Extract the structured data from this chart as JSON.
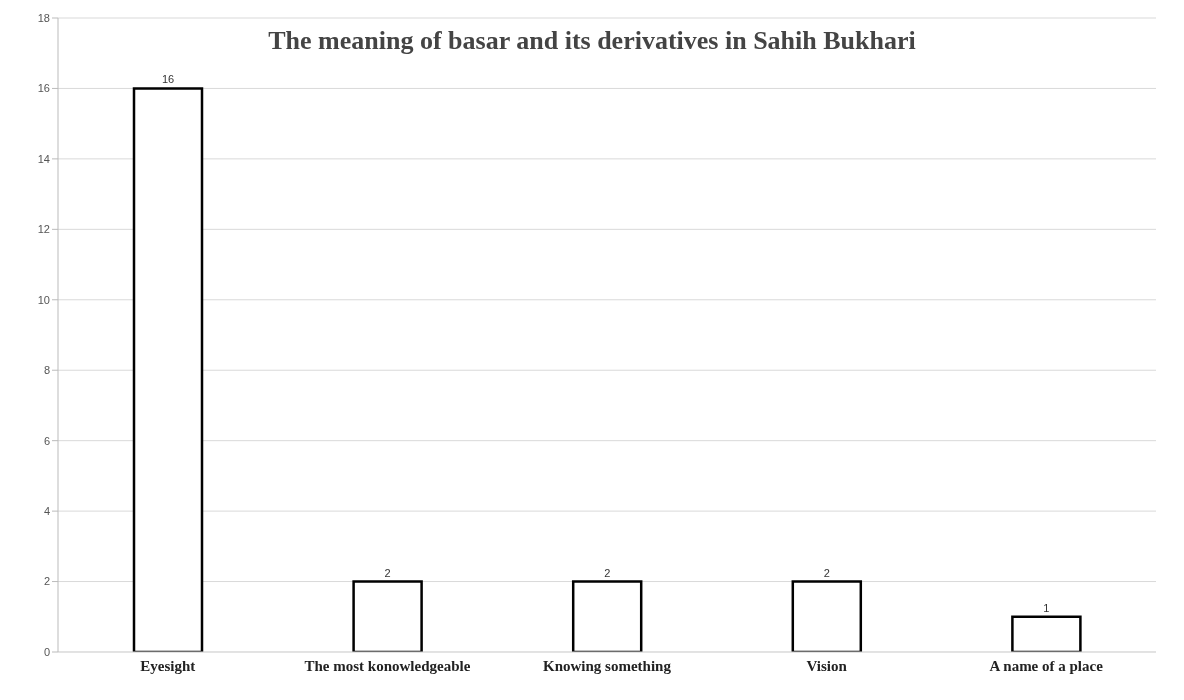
{
  "chart_data": {
    "type": "bar",
    "title": "The meaning of basar and its derivatives in Sahih Bukhari",
    "categories": [
      "Eyesight",
      "The most konowledgeable",
      "Knowing something",
      "Vision",
      "A name of a place"
    ],
    "values": [
      16,
      2,
      2,
      2,
      1
    ],
    "color": "#ffffff",
    "ylim": [
      0,
      18
    ],
    "yticks": [
      0,
      2,
      4,
      6,
      8,
      10,
      12,
      14,
      16,
      18
    ],
    "grid": "y",
    "data_labels": true
  }
}
